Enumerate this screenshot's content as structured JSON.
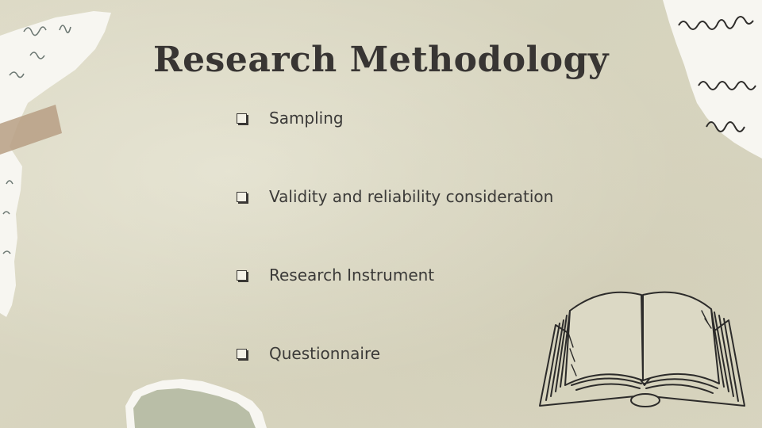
{
  "slide": {
    "title": "Research Methodology",
    "bullets": [
      "Sampling",
      "Validity and reliability consideration",
      "Research Instrument",
      "Questionnaire"
    ]
  },
  "decor": {
    "handwriting_top_right": [
      "ɑufue",
      "abue",
      "klam"
    ]
  },
  "colors": {
    "background": "#d9d6c2",
    "text": "#383533",
    "paper": "#f7f6f1",
    "tape": "#b79f84",
    "green_patch": "#b9bea7"
  },
  "icons": [
    "checkbox-bullet-icon",
    "open-book-illustration",
    "torn-paper-decoration",
    "tape-decoration"
  ]
}
